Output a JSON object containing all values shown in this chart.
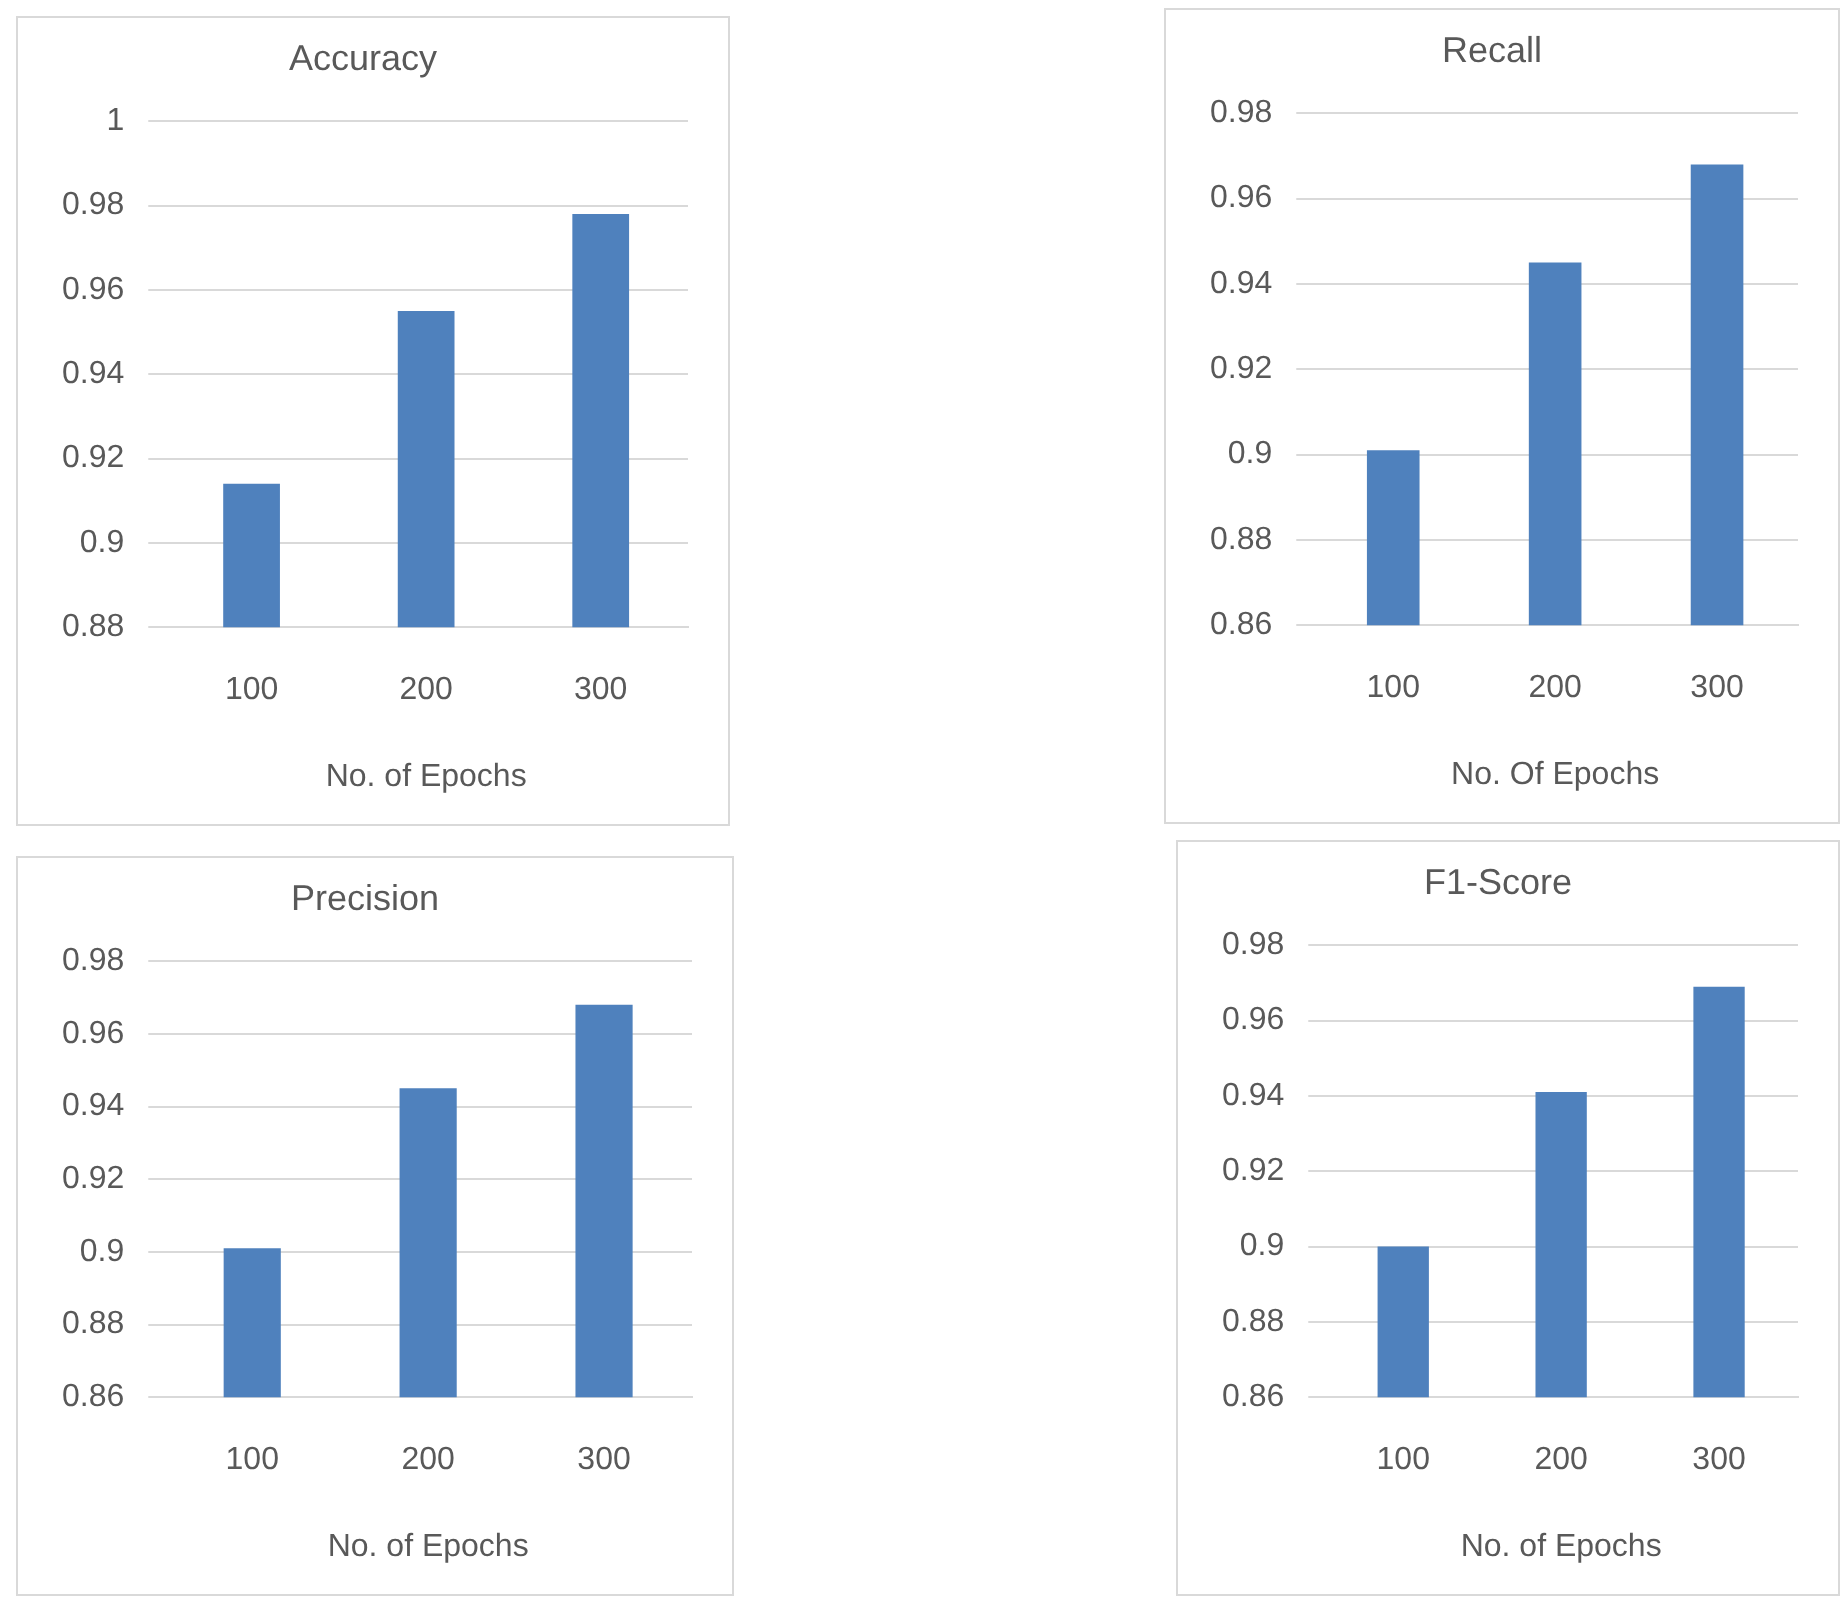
{
  "chart_data": [
    {
      "type": "bar",
      "title": "Accuracy",
      "xlabel": "No. of Epochs",
      "categories": [
        "100",
        "200",
        "300"
      ],
      "values": [
        0.914,
        0.955,
        0.978
      ],
      "color": "#4f81bd",
      "ylim": [
        0.88,
        1
      ],
      "yticks": [
        0.88,
        0.9,
        0.92,
        0.94,
        0.96,
        0.98,
        1
      ],
      "grid": "y",
      "legend": false
    },
    {
      "type": "bar",
      "title": "Recall",
      "xlabel": "No. Of Epochs",
      "categories": [
        "100",
        "200",
        "300"
      ],
      "values": [
        0.901,
        0.945,
        0.968
      ],
      "color": "#4f81bd",
      "ylim": [
        0.86,
        0.98
      ],
      "yticks": [
        0.86,
        0.88,
        0.9,
        0.92,
        0.94,
        0.96,
        0.98
      ],
      "grid": "y",
      "legend": false
    },
    {
      "type": "bar",
      "title": "Precision",
      "xlabel": "No. of Epochs",
      "categories": [
        "100",
        "200",
        "300"
      ],
      "values": [
        0.901,
        0.945,
        0.968
      ],
      "color": "#4f81bd",
      "ylim": [
        0.86,
        0.98
      ],
      "yticks": [
        0.86,
        0.88,
        0.9,
        0.92,
        0.94,
        0.96,
        0.98
      ],
      "grid": "y",
      "legend": false
    },
    {
      "type": "bar",
      "title": "F1-Score",
      "xlabel": "No. of Epochs",
      "categories": [
        "100",
        "200",
        "300"
      ],
      "values": [
        0.9,
        0.941,
        0.969
      ],
      "color": "#4f81bd",
      "ylim": [
        0.86,
        0.98
      ],
      "yticks": [
        0.86,
        0.88,
        0.9,
        0.92,
        0.94,
        0.96,
        0.98
      ],
      "grid": "y",
      "legend": false
    }
  ]
}
